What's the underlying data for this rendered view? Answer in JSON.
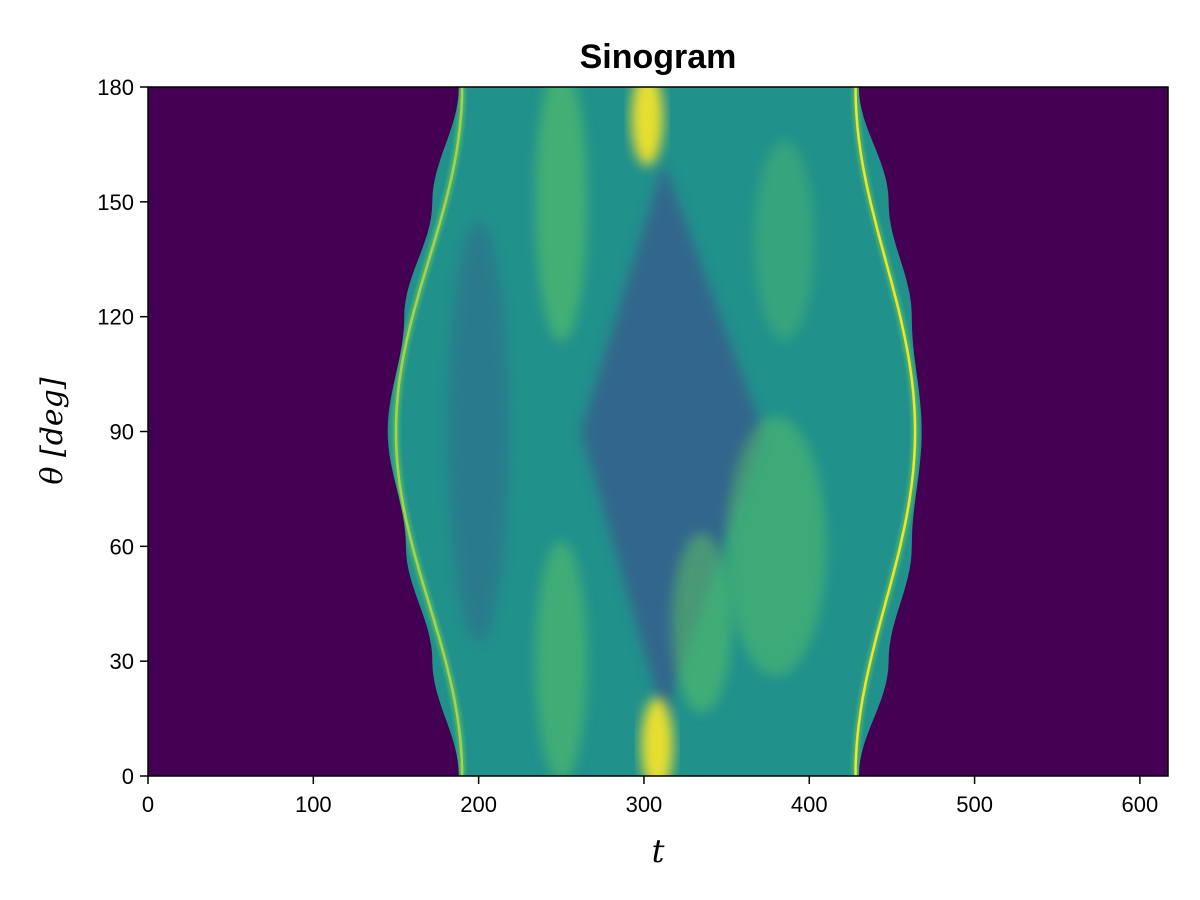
{
  "chart_data": {
    "type": "heatmap",
    "title": "Sinogram",
    "xlabel": "t",
    "ylabel": "θ [deg]",
    "xlim": [
      0,
      617
    ],
    "ylim": [
      0,
      180
    ],
    "xticks": [
      0,
      100,
      200,
      300,
      400,
      500,
      600
    ],
    "yticks": [
      0,
      30,
      60,
      90,
      120,
      150,
      180
    ],
    "colormap": "viridis",
    "colors": {
      "background": "#440154",
      "low": "#3a548c",
      "mid": "#21918c",
      "high": "#5ec962",
      "peak": "#fde725"
    },
    "support_boundary": {
      "description": "outer edge of nonzero sinogram support",
      "theta": [
        0,
        30,
        60,
        90,
        120,
        150,
        180
      ],
      "t_left": [
        188,
        172,
        156,
        145,
        155,
        172,
        188
      ],
      "t_right": [
        430,
        448,
        462,
        468,
        462,
        448,
        430
      ]
    },
    "features": [
      {
        "name": "bright edge left",
        "theta": [
          0,
          90,
          180
        ],
        "t": [
          190,
          150,
          190
        ]
      },
      {
        "name": "bright edge right",
        "theta": [
          0,
          90,
          180
        ],
        "t": [
          428,
          464,
          428
        ]
      },
      {
        "name": "peak bottom",
        "theta": 8,
        "t": 308
      },
      {
        "name": "peak top",
        "theta": 172,
        "t": 302
      }
    ],
    "grid": false
  }
}
